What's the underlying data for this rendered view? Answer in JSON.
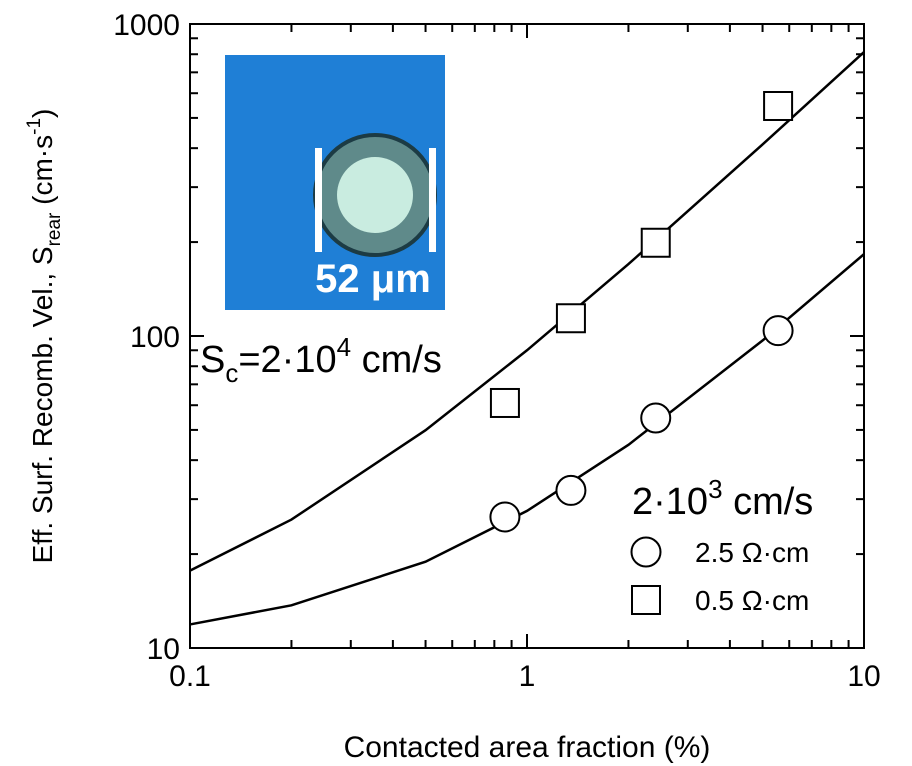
{
  "chart_data": {
    "type": "scatter",
    "x_label": "Contacted area fraction (%)",
    "y_label": {
      "main": "Eff. Surf. Recomb. Vel., S",
      "sub": "rear",
      "unit": " (cm·s",
      "sup": "-1",
      "close": ")"
    },
    "xscale": "log",
    "yscale": "log",
    "xlim": [
      0.1,
      10
    ],
    "ylim": [
      10,
      1000
    ],
    "xticks": [
      0.1,
      1,
      10
    ],
    "yticks": [
      10,
      100,
      1000
    ],
    "xminorticks": [
      0.2,
      0.3,
      0.4,
      0.5,
      0.6,
      0.7,
      0.8,
      0.9,
      2,
      3,
      4,
      5,
      6,
      7,
      8,
      9
    ],
    "yminorticks": [
      20,
      30,
      40,
      50,
      60,
      70,
      80,
      90,
      200,
      300,
      400,
      500,
      600,
      700,
      800,
      900
    ],
    "series": [
      {
        "name": "2.5 Ω·cm",
        "marker": "circle",
        "color": "#000000",
        "x": [
          0.86,
          1.35,
          2.41,
          5.56
        ],
        "values": [
          26.3,
          32,
          54.6,
          104
        ]
      },
      {
        "name": "0.5 Ω·cm",
        "marker": "square",
        "color": "#000000",
        "x": [
          0.86,
          1.35,
          2.41,
          5.56
        ],
        "values": [
          61,
          114,
          199,
          546
        ]
      }
    ],
    "fits": [
      {
        "color": "#000000",
        "x": [
          0.1,
          0.2,
          0.5,
          1,
          2,
          5,
          10
        ],
        "values": [
          11.9,
          13.7,
          18.9,
          27.5,
          44.8,
          96.7,
          183
        ]
      },
      {
        "color": "#000000",
        "x": [
          0.1,
          0.2,
          0.5,
          1,
          2,
          5,
          10
        ],
        "values": [
          17.7,
          25.8,
          49.9,
          90,
          170,
          411,
          813
        ]
      }
    ],
    "annotations": {
      "sc_high": {
        "base": "S",
        "sub": "c",
        "mid": "=2·10",
        "sup": "4",
        "unit": " cm/s"
      },
      "sc_low": {
        "mid": "2·10",
        "sup": "3",
        "unit": " cm/s"
      },
      "inset_scale": "52 μm"
    }
  }
}
